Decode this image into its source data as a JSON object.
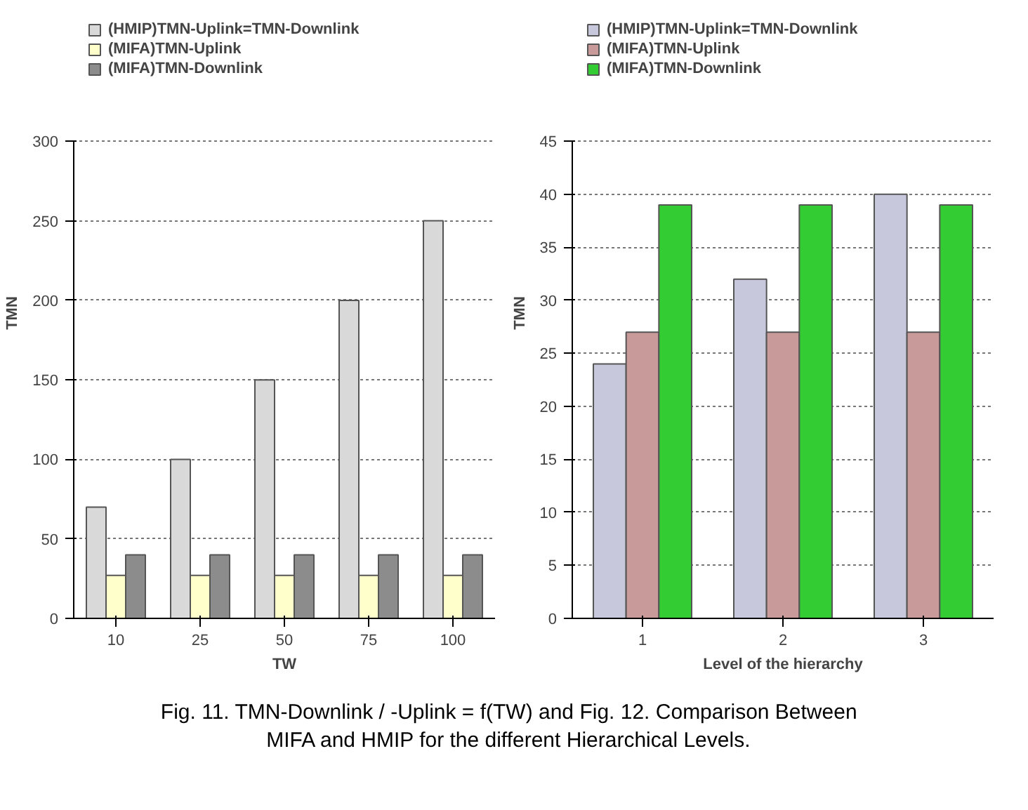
{
  "chart_data": [
    {
      "type": "bar",
      "categories": [
        "10",
        "25",
        "50",
        "75",
        "100"
      ],
      "xlabel": "TW",
      "ylabel": "TMN",
      "ylim": [
        0,
        300
      ],
      "yticks": [
        0,
        50,
        100,
        150,
        200,
        250,
        300
      ],
      "grid": "y",
      "legend": "top",
      "series": [
        {
          "name": "(HMIP)TMN-Uplink=TMN-Downlink",
          "color": "#d9d9d9",
          "values": [
            70,
            100,
            150,
            200,
            250
          ]
        },
        {
          "name": "(MIFA)TMN-Uplink",
          "color": "#ffffcc",
          "values": [
            27,
            27,
            27,
            27,
            27
          ]
        },
        {
          "name": "(MIFA)TMN-Downlink",
          "color": "#8c8c8c",
          "values": [
            40,
            40,
            40,
            40,
            40
          ]
        }
      ]
    },
    {
      "type": "bar",
      "categories": [
        "1",
        "2",
        "3"
      ],
      "xlabel": "Level of the hierarchy",
      "ylabel": "TMN",
      "ylim": [
        0,
        45
      ],
      "yticks": [
        0,
        5,
        10,
        15,
        20,
        25,
        30,
        35,
        40,
        45
      ],
      "grid": "y",
      "legend": "top",
      "series": [
        {
          "name": "(HMIP)TMN-Uplink=TMN-Downlink",
          "color": "#c8c8dc",
          "values": [
            24,
            32,
            40
          ]
        },
        {
          "name": "(MIFA)TMN-Uplink",
          "color": "#c89a9a",
          "values": [
            27,
            27,
            27
          ]
        },
        {
          "name": "(MIFA)TMN-Downlink",
          "color": "#33cc33",
          "values": [
            39,
            39,
            39
          ]
        }
      ],
      "annotations": [
        "Fig. 11. TMN-Downlink / -Uplink = f(TW) and Fig. 12. Comparison Between MIFA and HMIP for the different Hierarchical Levels."
      ]
    }
  ]
}
